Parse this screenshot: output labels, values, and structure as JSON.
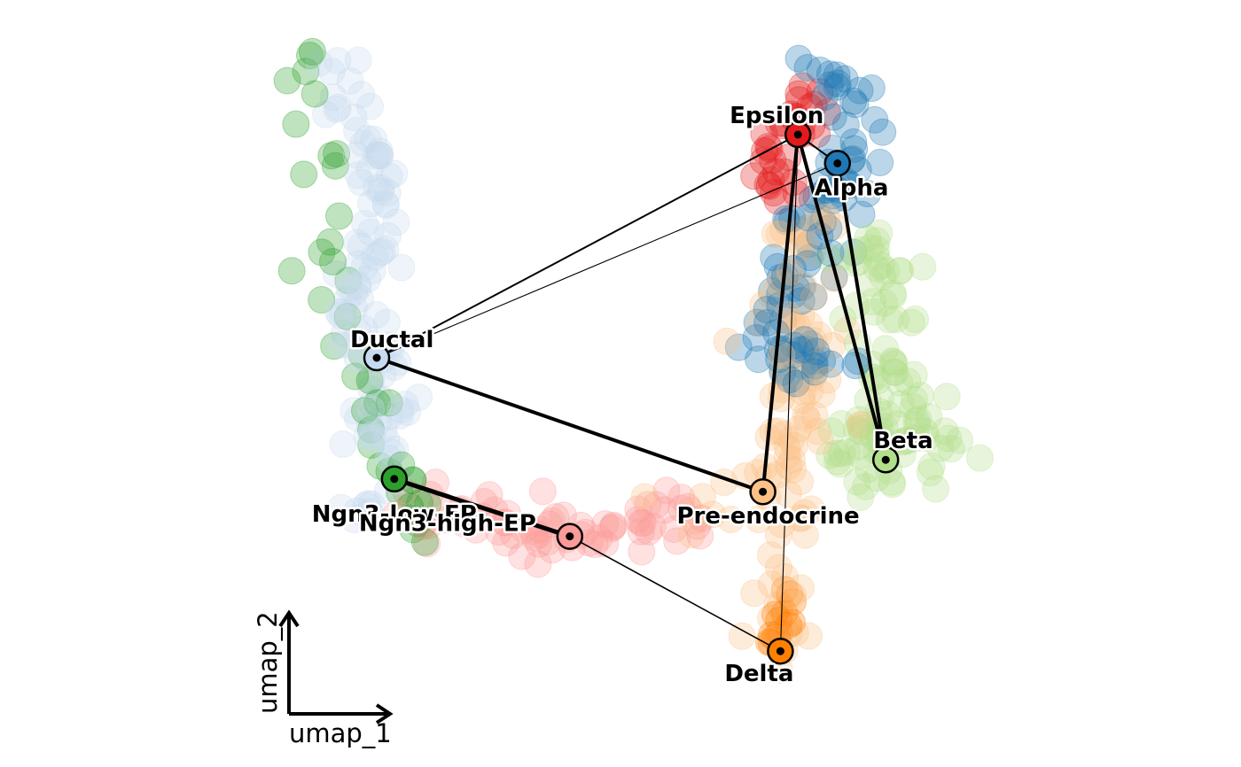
{
  "chart_data": {
    "type": "scatter",
    "subtype": "umap-paga-graph",
    "xlabel": "umap_1",
    "ylabel": "umap_2",
    "grid": false,
    "legend": "none",
    "nodes": [
      {
        "id": "ductal",
        "name": "Ductal",
        "x": 3.2,
        "y": 6.4,
        "color": "#c6dbef"
      },
      {
        "id": "ngn3low",
        "name": "Ngn3-low-EP",
        "x": 3.4,
        "y": 4.5,
        "color": "#2ca02c"
      },
      {
        "id": "ngn3high",
        "name": "Ngn3-high-EP",
        "x": 5.4,
        "y": 3.6,
        "color": "#fb9a99"
      },
      {
        "id": "preendo",
        "name": "Pre-endocrine",
        "x": 7.6,
        "y": 4.3,
        "color": "#fdc086"
      },
      {
        "id": "epsilon",
        "name": "Epsilon",
        "x": 8.0,
        "y": 9.9,
        "color": "#e31a1c"
      },
      {
        "id": "alpha",
        "name": "Alpha",
        "x": 8.45,
        "y": 9.45,
        "color": "#1f78b4"
      },
      {
        "id": "beta",
        "name": "Beta",
        "x": 9.0,
        "y": 4.8,
        "color": "#b2df8a"
      },
      {
        "id": "delta",
        "name": "Delta",
        "x": 7.8,
        "y": 1.8,
        "color": "#ff7f00"
      }
    ],
    "edges": [
      {
        "source": "ductal",
        "target": "preendo",
        "weight": 4
      },
      {
        "source": "ngn3low",
        "target": "ngn3high",
        "weight": 5
      },
      {
        "source": "ngn3high",
        "target": "delta",
        "weight": 1.6
      },
      {
        "source": "ductal",
        "target": "epsilon",
        "weight": 2
      },
      {
        "source": "ductal",
        "target": "alpha",
        "weight": 1.1
      },
      {
        "source": "epsilon",
        "target": "alpha",
        "weight": 2
      },
      {
        "source": "epsilon",
        "target": "preendo",
        "weight": 4
      },
      {
        "source": "epsilon",
        "target": "beta",
        "weight": 4
      },
      {
        "source": "alpha",
        "target": "beta",
        "weight": 4
      },
      {
        "source": "epsilon",
        "target": "delta",
        "weight": 1.1
      }
    ],
    "cell_clusters": [
      {
        "node": "ductal",
        "path": [
          [
            2.6,
            11.2
          ],
          [
            2.7,
            10.8
          ],
          [
            2.8,
            10.3
          ],
          [
            3.1,
            9.8
          ],
          [
            3.2,
            9.2
          ],
          [
            3.3,
            8.6
          ],
          [
            3.1,
            8.0
          ],
          [
            3.0,
            7.4
          ],
          [
            3.1,
            6.8
          ],
          [
            3.2,
            6.2
          ],
          [
            3.3,
            5.6
          ],
          [
            3.2,
            5.0
          ],
          [
            3.1,
            4.4
          ],
          [
            3.1,
            3.8
          ]
        ],
        "count": 110,
        "spread": 0.18
      },
      {
        "node": "ngn3low",
        "path": [
          [
            2.4,
            11.2
          ],
          [
            2.4,
            10.6
          ],
          [
            2.5,
            9.9
          ],
          [
            2.6,
            9.2
          ],
          [
            2.7,
            8.3
          ],
          [
            2.6,
            7.8
          ],
          [
            3.2,
            5.4
          ],
          [
            3.4,
            4.9
          ],
          [
            3.6,
            4.4
          ],
          [
            3.8,
            4.1
          ],
          [
            3.7,
            3.6
          ]
        ],
        "count": 40,
        "spread": 0.18
      },
      {
        "node": "ngn3high",
        "path": [
          [
            3.6,
            4.0
          ],
          [
            4.3,
            3.9
          ],
          [
            4.8,
            3.6
          ],
          [
            5.4,
            3.5
          ],
          [
            5.9,
            3.6
          ],
          [
            6.4,
            3.8
          ],
          [
            6.8,
            4.1
          ]
        ],
        "count": 75,
        "spread": 0.2
      },
      {
        "node": "preendo",
        "path": [
          [
            6.5,
            3.9
          ],
          [
            7.0,
            4.2
          ],
          [
            7.5,
            4.5
          ],
          [
            7.9,
            4.9
          ],
          [
            8.2,
            5.4
          ],
          [
            7.9,
            6.0
          ],
          [
            8.1,
            6.8
          ],
          [
            8.0,
            8.6
          ],
          [
            7.8,
            2.8
          ],
          [
            7.8,
            2.3
          ],
          [
            7.8,
            1.8
          ]
        ],
        "count": 110,
        "spread": 0.22
      },
      {
        "node": "epsilon",
        "path": [
          [
            7.9,
            9.9
          ],
          [
            8.05,
            10.2
          ],
          [
            8.2,
            10.6
          ],
          [
            7.7,
            9.0
          ],
          [
            7.8,
            9.6
          ],
          [
            7.9,
            10.3
          ]
        ],
        "count": 35,
        "spread": 0.16
      },
      {
        "node": "alpha",
        "path": [
          [
            8.3,
            10.9
          ],
          [
            8.6,
            10.5
          ],
          [
            8.7,
            10.0
          ],
          [
            8.5,
            9.4
          ],
          [
            8.3,
            8.8
          ],
          [
            8.05,
            8.0
          ],
          [
            7.9,
            7.3
          ],
          [
            7.7,
            6.6
          ],
          [
            8.05,
            6.3
          ],
          [
            8.4,
            6.3
          ]
        ],
        "count": 95,
        "spread": 0.18
      },
      {
        "node": "beta",
        "path": [
          [
            8.3,
            4.9
          ],
          [
            8.8,
            5.2
          ],
          [
            9.3,
            5.4
          ],
          [
            9.7,
            5.0
          ],
          [
            9.3,
            4.6
          ],
          [
            8.7,
            4.7
          ],
          [
            9.2,
            6.0
          ],
          [
            8.7,
            8.4
          ]
        ],
        "count": 105,
        "spread": 0.22
      },
      {
        "node": "delta",
        "path": [
          [
            7.85,
            2.8
          ],
          [
            7.85,
            2.4
          ],
          [
            7.85,
            2.0
          ],
          [
            7.85,
            1.7
          ]
        ],
        "count": 14,
        "spread": 0.08
      }
    ]
  }
}
